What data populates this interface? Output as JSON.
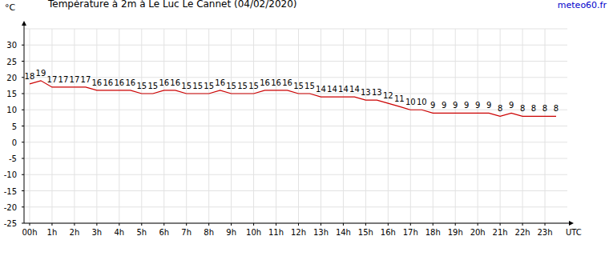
{
  "chart_data": {
    "type": "line",
    "title": "Température à 2m à Le Luc Le Cannet (04/02/2020)",
    "y_label": "°C",
    "x_label": "UTC",
    "source": "meteo60.fr",
    "x": [
      0,
      0.5,
      1,
      1.5,
      2,
      2.5,
      3,
      3.5,
      4,
      4.5,
      5,
      5.5,
      6,
      6.5,
      7,
      7.5,
      8,
      8.5,
      9,
      9.5,
      10,
      10.5,
      11,
      11.5,
      12,
      12.5,
      13,
      13.5,
      14,
      14.5,
      15,
      15.5,
      16,
      16.5,
      17,
      17.5,
      18,
      18.5,
      19,
      19.5,
      20,
      20.5,
      21,
      21.5,
      22,
      22.5,
      23,
      23.5
    ],
    "series": [
      {
        "name": "Température",
        "color": "#cc0000",
        "values": [
          18,
          19,
          17,
          17,
          17,
          17,
          16,
          16,
          16,
          16,
          15,
          15,
          16,
          16,
          15,
          15,
          15,
          16,
          15,
          15,
          15,
          16,
          16,
          16,
          15,
          15,
          14,
          14,
          14,
          14,
          13,
          13,
          12,
          11,
          10,
          10,
          9,
          9,
          9,
          9,
          9,
          9,
          8,
          9,
          8,
          8,
          8,
          8
        ]
      }
    ],
    "xlim": [
      -0.25,
      24
    ],
    "xticks": [
      {
        "value": 0,
        "label": "00h"
      },
      {
        "value": 1,
        "label": "1h"
      },
      {
        "value": 2,
        "label": "2h"
      },
      {
        "value": 3,
        "label": "3h"
      },
      {
        "value": 4,
        "label": "4h"
      },
      {
        "value": 5,
        "label": "5h"
      },
      {
        "value": 6,
        "label": "6h"
      },
      {
        "value": 7,
        "label": "7h"
      },
      {
        "value": 8,
        "label": "8h"
      },
      {
        "value": 9,
        "label": "9h"
      },
      {
        "value": 10,
        "label": "10h"
      },
      {
        "value": 11,
        "label": "11h"
      },
      {
        "value": 12,
        "label": "12h"
      },
      {
        "value": 13,
        "label": "13h"
      },
      {
        "value": 14,
        "label": "14h"
      },
      {
        "value": 15,
        "label": "15h"
      },
      {
        "value": 16,
        "label": "16h"
      },
      {
        "value": 17,
        "label": "17h"
      },
      {
        "value": 18,
        "label": "18h"
      },
      {
        "value": 19,
        "label": "19h"
      },
      {
        "value": 20,
        "label": "20h"
      },
      {
        "value": 21,
        "label": "21h"
      },
      {
        "value": 22,
        "label": "22h"
      },
      {
        "value": 23,
        "label": "23h"
      }
    ],
    "ylim": [
      -25,
      35
    ],
    "yticks": [
      -25,
      -20,
      -15,
      -10,
      -5,
      0,
      5,
      10,
      15,
      20,
      25,
      30
    ],
    "grid": true,
    "data_labels": true
  }
}
